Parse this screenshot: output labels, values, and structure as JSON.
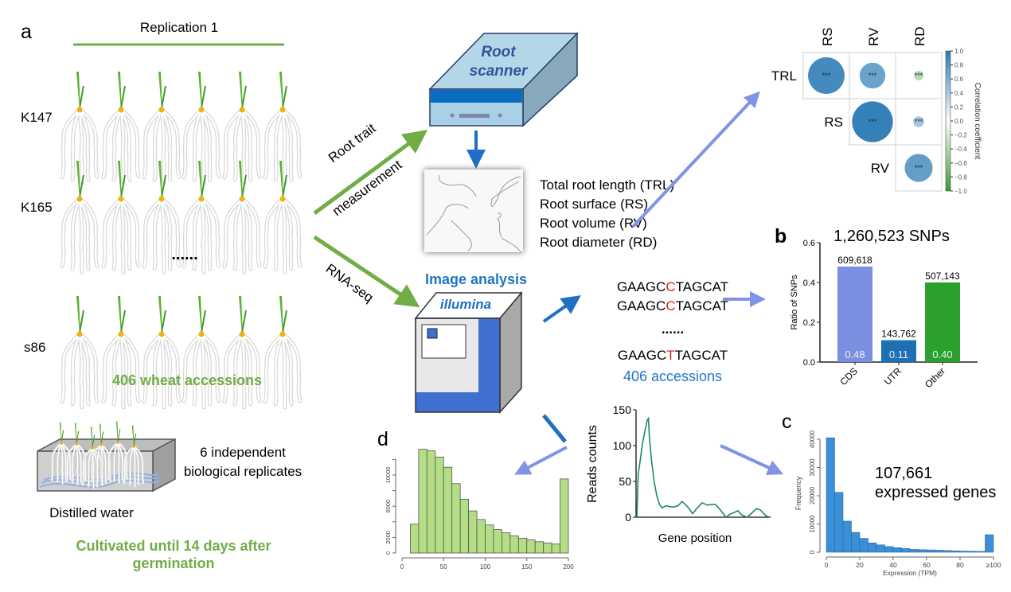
{
  "panel_a": {
    "letter": "a",
    "replication_label": "Replication 1",
    "accessions": [
      "K147",
      "K165",
      "s86"
    ],
    "ellipsis": "......",
    "plants_per_row": 6,
    "summary": "406 wheat accessions",
    "replicates_line1": "6 independent",
    "replicates_line2": "biological replicates",
    "water_label": "Distilled water",
    "cultivation_line1": "Cultivated until 14 days after",
    "cultivation_line2": "germination",
    "arrow_top_label1": "Root trait",
    "arrow_top_label2": "measurement",
    "arrow_bottom_label": "RNA-seq",
    "scanner_label1": "Root",
    "scanner_label2": "scanner",
    "image_analysis_label": "Image analysis",
    "traits": [
      "Total root length (TRL)",
      "Root surface (RS)",
      "Root volume (RV)",
      "Root diameter (RD)"
    ],
    "sequencer_label": "illumina",
    "sequences": [
      {
        "prefix": "GAAGC",
        "snp": "C",
        "suffix": "TAGCAT"
      },
      {
        "prefix": "GAAGC",
        "snp": "C",
        "suffix": "TAGCAT"
      },
      {
        "prefix": "GAAGC",
        "snp": "T",
        "suffix": "TAGCAT"
      }
    ],
    "seq_ellipsis": "......",
    "seq_accessions": "406 accessions",
    "colors": {
      "green": "#70ad47",
      "blue": "#1f77c4",
      "snp_red": "#e02020",
      "arrow_purple": "#8093e6"
    }
  },
  "chart_data": [
    {
      "type": "heatmap",
      "columns": [
        "RS",
        "RV",
        "RD"
      ],
      "rows": [
        "TRL",
        "RS",
        "RV"
      ],
      "cells": [
        {
          "row": "TRL",
          "col": "RS",
          "r": 0.85,
          "label": "***"
        },
        {
          "row": "TRL",
          "col": "RV",
          "r": 0.6,
          "label": "***"
        },
        {
          "row": "TRL",
          "col": "RD",
          "r": -0.15,
          "label": "***"
        },
        {
          "row": "RS",
          "col": "RV",
          "r": 0.95,
          "label": "***"
        },
        {
          "row": "RS",
          "col": "RD",
          "r": 0.25,
          "label": "***"
        },
        {
          "row": "RV",
          "col": "RD",
          "r": 0.65,
          "label": "***"
        }
      ],
      "colorbar_label": "Correlation coefficient",
      "colorbar_ticks": [
        "1.0",
        "0.8",
        "0.6",
        "0.4",
        "0.2",
        "0.0",
        "−0.2",
        "−0.4",
        "−0.6",
        "−0.8",
        "−1.0"
      ],
      "colorbar_range": [
        -1,
        1
      ],
      "colors": {
        "positive": "#2c7bb6",
        "zero": "#ffffff",
        "negative": "#3a9a35"
      }
    },
    {
      "type": "bar",
      "panel": "b",
      "title": "1,260,523 SNPs",
      "categories": [
        "CDS",
        "UTR",
        "Other"
      ],
      "values": [
        0.48,
        0.11,
        0.4
      ],
      "value_labels": [
        "0.48",
        "0.11",
        "0.40"
      ],
      "count_labels": [
        "609,618",
        "143,762",
        "507,143"
      ],
      "colors": [
        "#7b8fe0",
        "#1f6fb4",
        "#2ca02c"
      ],
      "ylabel": "Ratio of SNPs",
      "ylim": [
        0,
        0.6
      ],
      "yticks": [
        "0.0",
        "0.2",
        "0.4",
        "0.6"
      ]
    },
    {
      "type": "bar",
      "panel": "c",
      "subtype": "histogram",
      "annotation_line1": "107,661",
      "annotation_line2": "expressed genes",
      "bin_width": 5,
      "bin_starts": [
        0,
        5,
        10,
        15,
        20,
        25,
        30,
        35,
        40,
        45,
        50,
        55,
        60,
        65,
        70,
        75,
        80,
        85,
        90,
        95
      ],
      "values": [
        40500,
        21200,
        11000,
        7000,
        4900,
        3300,
        2600,
        2000,
        1600,
        1300,
        1000,
        900,
        800,
        700,
        600,
        500,
        400,
        350,
        300,
        6200
      ],
      "xlabel": "Expression (TPM)",
      "ylabel": "Frequency",
      "xticks": [
        "0",
        "20",
        "40",
        "60",
        "80",
        "≥100"
      ],
      "yticks": [
        "0",
        "10000",
        "20000",
        "30000",
        "40000"
      ],
      "xlim": [
        0,
        100
      ],
      "color": "#3a8fd6"
    },
    {
      "type": "line",
      "xlabel": "Gene position",
      "ylabel": "Reads counts",
      "yticks": [
        "0",
        "50",
        "100",
        "150"
      ],
      "ylim": [
        0,
        150
      ],
      "x": [
        0,
        1,
        2.6,
        4,
        6,
        7.7,
        8.7,
        9.5,
        11,
        13,
        15,
        17,
        19,
        22,
        27,
        31,
        34,
        38,
        42,
        45,
        49,
        53,
        59,
        62,
        67,
        70,
        76,
        79,
        83,
        86,
        90,
        93,
        97,
        100
      ],
      "y": [
        0,
        60,
        80,
        100,
        120,
        135,
        138,
        110,
        80,
        50,
        30,
        18,
        13,
        16,
        14,
        16,
        22,
        15,
        5,
        12,
        20,
        17,
        18,
        12,
        0,
        4,
        9,
        3,
        0,
        5,
        12,
        10,
        2,
        0
      ],
      "color": "#1e8a5a"
    },
    {
      "type": "bar",
      "panel": "d",
      "subtype": "histogram",
      "bin_width": 10,
      "bin_starts": [
        10,
        20,
        30,
        40,
        50,
        60,
        70,
        80,
        90,
        100,
        110,
        120,
        130,
        140,
        150,
        160,
        170,
        180,
        190
      ],
      "values": [
        3700,
        13300,
        13100,
        12300,
        11000,
        8900,
        6900,
        5400,
        4300,
        3600,
        3000,
        2600,
        2200,
        1900,
        1700,
        1450,
        1300,
        1150,
        9500
      ],
      "xticks": [
        "0",
        "50",
        "100",
        "150",
        "200"
      ],
      "yticks": [
        "0",
        "2000",
        "6000",
        "10000"
      ],
      "xlim": [
        0,
        200
      ],
      "color": "#b3de86"
    }
  ]
}
